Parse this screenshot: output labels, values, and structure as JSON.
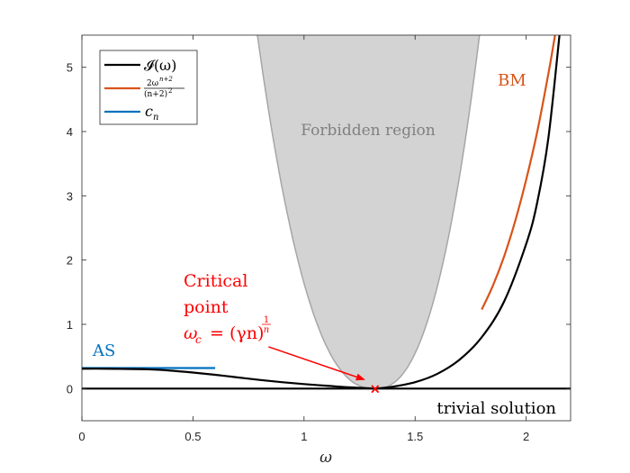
{
  "chart_data": {
    "type": "line",
    "xlabel": "ω",
    "ylabel": "",
    "xlim": [
      0,
      2.2
    ],
    "ylim": [
      -0.5,
      5.5
    ],
    "xticks": [
      0,
      0.5,
      1,
      1.5,
      2
    ],
    "xtick_labels": [
      "0",
      "0.5",
      "1",
      "1.5",
      "2"
    ],
    "yticks": [
      0,
      1,
      2,
      3,
      4,
      5
    ],
    "ytick_labels": [
      "0",
      "1",
      "2",
      "3",
      "4",
      "5"
    ],
    "legend_position": "top-left",
    "series": [
      {
        "name": "I(ω)",
        "legend_label": "𝓘(ω)",
        "color": "#000000",
        "x": [
          0,
          0.1,
          0.2,
          0.3,
          0.4,
          0.5,
          0.6,
          0.7,
          0.8,
          0.9,
          1.0,
          1.1,
          1.2,
          1.3,
          1.32,
          1.4,
          1.5,
          1.6,
          1.7,
          1.8,
          1.9,
          2.0,
          2.05,
          2.1,
          2.15
        ],
        "y": [
          0.31,
          0.31,
          0.305,
          0.3,
          0.28,
          0.25,
          0.215,
          0.175,
          0.135,
          0.1,
          0.07,
          0.045,
          0.02,
          0.004,
          0.0,
          0.03,
          0.1,
          0.23,
          0.45,
          0.8,
          1.35,
          2.25,
          2.9,
          3.9,
          5.5
        ]
      },
      {
        "name": "2ω^(n+2)/(n+2)^2",
        "legend_label": "2ω^{n+2}/(n+2)^2",
        "color": "#d95319",
        "x": [
          1.8,
          1.85,
          1.9,
          1.95,
          2.0,
          2.05,
          2.1,
          2.13
        ],
        "y": [
          1.23,
          1.6,
          2.05,
          2.6,
          3.25,
          4.0,
          4.9,
          5.5
        ]
      },
      {
        "name": "c_n",
        "legend_label": "c_n",
        "color": "#0072bd",
        "x": [
          0,
          0.6
        ],
        "y": [
          0.32,
          0.32
        ]
      },
      {
        "name": "trivial solution",
        "color": "#000000",
        "x": [
          0,
          2.2
        ],
        "y": [
          0,
          0
        ]
      }
    ],
    "forbidden_region": {
      "label": "Forbidden region",
      "vertex": [
        1.32,
        0
      ],
      "top_left_x": 0.79,
      "top_right_x": 1.79,
      "top_y": 5.5,
      "fill": "#d3d3d3",
      "edge": "#a6a6a6"
    },
    "critical_point": {
      "x": 1.32,
      "y": 0,
      "marker": "×",
      "color": "#ff0000",
      "arrow_from": [
        0.84,
        0.65
      ]
    },
    "annotations": {
      "critical_line1": "Critical",
      "critical_line2": "point",
      "omega_c": "ω",
      "omega_c_sub": "c",
      "omega_c_eq": "= (γn)",
      "omega_c_exp_num": "1",
      "omega_c_exp_den": "n",
      "as_label": "AS",
      "bm_label": "BM",
      "trivial_label": "trivial solution"
    },
    "legend": {
      "entry1_main": "𝓘(ω)",
      "entry2_num": "2ω",
      "entry2_num_sup": "n+2",
      "entry2_den": "(n+2)",
      "entry2_den_sup": "2",
      "entry3_main": "c",
      "entry3_sub": "n"
    }
  }
}
